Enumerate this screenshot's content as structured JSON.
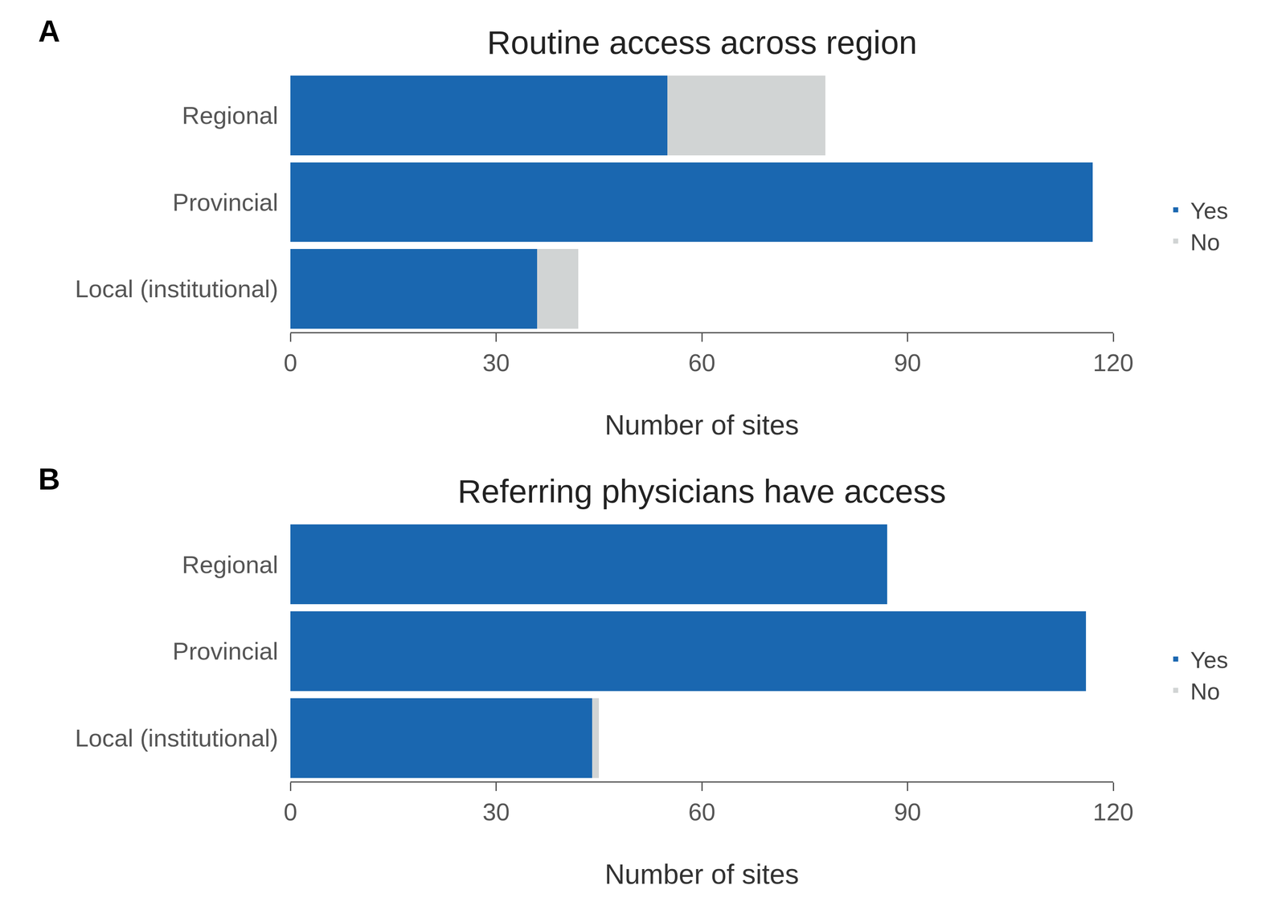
{
  "chart_data": [
    {
      "type": "bar",
      "annotations": [
        "A"
      ],
      "title": "Routine access across region",
      "xlabel": "Number of sites",
      "orientation": "horizontal",
      "stacked": true,
      "categories": [
        "Regional",
        "Provincial",
        "Local (institutional)"
      ],
      "series": [
        {
          "name": "Yes",
          "color": "#1a67b0",
          "values": [
            55,
            117,
            36
          ]
        },
        {
          "name": "No",
          "color": "#d1d4d4",
          "values": [
            23,
            0,
            6
          ]
        }
      ],
      "xlim": [
        0,
        120
      ],
      "xticks": [
        0,
        30,
        60,
        90,
        120
      ],
      "grid": false,
      "legend": "right"
    },
    {
      "type": "bar",
      "annotations": [
        "B"
      ],
      "title": "Referring physicians have access",
      "xlabel": "Number of sites",
      "orientation": "horizontal",
      "stacked": true,
      "categories": [
        "Regional",
        "Provincial",
        "Local (institutional)"
      ],
      "series": [
        {
          "name": "Yes",
          "color": "#1a67b0",
          "values": [
            87,
            116,
            44
          ]
        },
        {
          "name": "No",
          "color": "#d1d4d4",
          "values": [
            0,
            0,
            1
          ]
        }
      ],
      "xlim": [
        0,
        120
      ],
      "xticks": [
        0,
        30,
        60,
        90,
        120
      ],
      "grid": false,
      "legend": "right"
    }
  ]
}
